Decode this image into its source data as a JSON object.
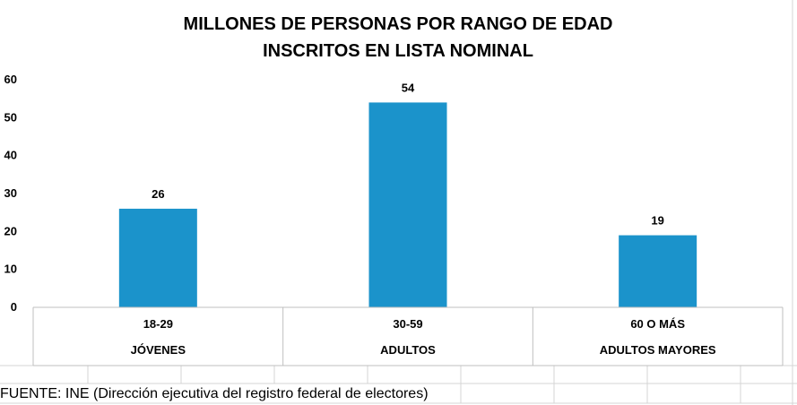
{
  "chart_data": {
    "type": "bar",
    "title_lines": [
      "MILLONES DE PERSONAS POR RANGO DE EDAD",
      "INSCRITOS EN LISTA NOMINAL"
    ],
    "categories": [
      "18-29",
      "30-59",
      "60 O MÁS"
    ],
    "group_labels": [
      "JÓVENES",
      "ADULTOS",
      "ADULTOS MAYORES"
    ],
    "values": [
      26,
      54,
      19
    ],
    "data_labels": [
      "26",
      "54",
      "19"
    ],
    "ylim": [
      0,
      60
    ],
    "yticks": [
      0,
      10,
      20,
      30,
      40,
      50,
      60
    ],
    "xlabel": "",
    "ylabel": "",
    "grid": false,
    "bar_color": "#1b93cb"
  },
  "footer": {
    "source": "FUENTE: INE (Dirección ejecutiva del registro federal de electores)"
  }
}
